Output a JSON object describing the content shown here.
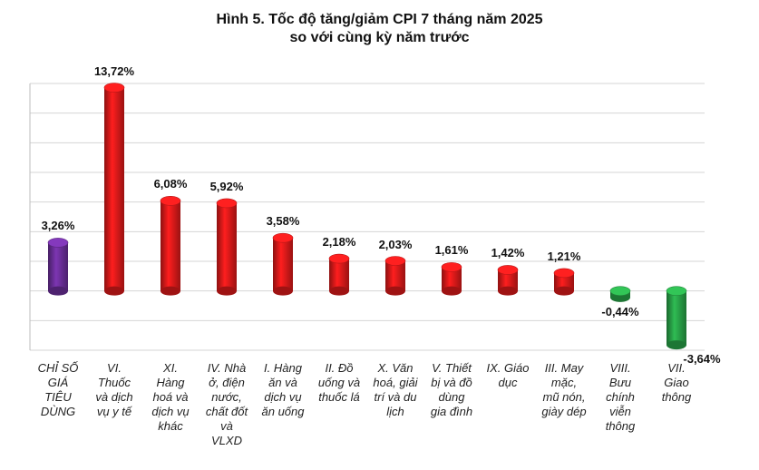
{
  "title_line1": "Hình 5. Tốc độ tăng/giảm CPI 7 tháng năm 2025",
  "title_line2": "so với cùng kỳ năm trước",
  "chart_data": {
    "type": "bar",
    "title": "Hình 5. Tốc độ tăng/giảm CPI 7 tháng năm 2025 so với cùng kỳ năm trước",
    "categories": [
      "CHỈ SỐ GIÁ TIÊU DÙNG",
      "VI. Thuốc và dịch vụ y tế",
      "XI. Hàng hoá và dịch vụ khác",
      "IV. Nhà ở, điện nước, chất đốt và VLXD",
      "I. Hàng ăn và dịch vụ ăn uống",
      "II. Đồ uống và thuốc lá",
      "X. Văn hoá, giải trí và du lịch",
      "V. Thiết bị và đồ dùng gia đình",
      "IX. Giáo dục",
      "III. May mặc, mũ nón, giày dép",
      "VIII. Bưu chính viễn thông",
      "VII. Giao thông"
    ],
    "category_lines": [
      [
        "CHỈ SỐ",
        "GIÁ",
        "TIÊU",
        "DÙNG"
      ],
      [
        "VI.",
        "Thuốc",
        "và dịch",
        "vụ y tế"
      ],
      [
        "XI.",
        "Hàng",
        "hoá và",
        "dịch vụ",
        "khác"
      ],
      [
        "IV. Nhà",
        "ở, điện",
        "nước,",
        "chất đốt",
        "và",
        "VLXD"
      ],
      [
        "I. Hàng",
        "ăn và",
        "dịch vụ",
        "ăn uống"
      ],
      [
        "II. Đồ",
        "uống và",
        "thuốc lá"
      ],
      [
        "X. Văn",
        "hoá, giải",
        "trí và du",
        "lịch"
      ],
      [
        "V. Thiết",
        "bị và đồ",
        "dùng",
        "gia đình"
      ],
      [
        "IX. Giáo",
        "dục"
      ],
      [
        "III. May",
        "mặc,",
        "mũ nón,",
        "giày dép"
      ],
      [
        "VIII.",
        "Bưu",
        "chính",
        "viễn",
        "thông"
      ],
      [
        "VII.",
        "Giao",
        "thông"
      ]
    ],
    "values": [
      3.26,
      13.72,
      6.08,
      5.92,
      3.58,
      2.18,
      2.03,
      1.61,
      1.42,
      1.21,
      -0.44,
      -3.64
    ],
    "value_labels": [
      "3,26%",
      "13,72%",
      "6,08%",
      "5,92%",
      "3,58%",
      "2,18%",
      "2,03%",
      "1,61%",
      "1,42%",
      "1,21%",
      "-0,44%",
      "-3,64%"
    ],
    "colors": [
      "#7030a0",
      "#e31b1b",
      "#e31b1b",
      "#e31b1b",
      "#e31b1b",
      "#e31b1b",
      "#e31b1b",
      "#e31b1b",
      "#e31b1b",
      "#e31b1b",
      "#2aa84a",
      "#2aa84a"
    ],
    "ylim": [
      -4,
      14
    ],
    "grid": true,
    "legend": "none"
  }
}
